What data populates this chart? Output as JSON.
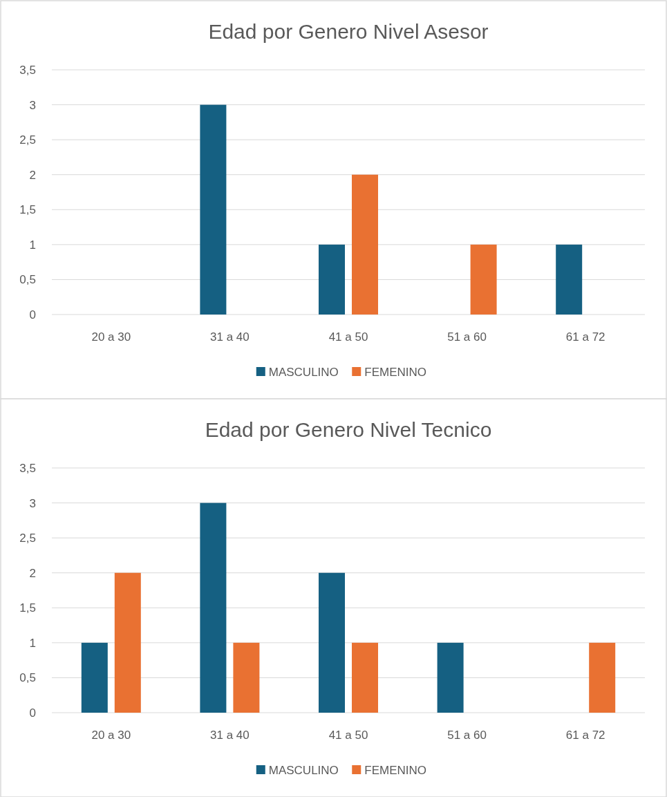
{
  "chart_data": [
    {
      "type": "bar",
      "title": "Edad por Genero Nivel Asesor",
      "categories": [
        "20 a 30",
        "31 a 40",
        "41 a 50",
        "51 a 60",
        "61 a 72"
      ],
      "series": [
        {
          "name": "MASCULINO",
          "color": "#156082",
          "values": [
            null,
            3,
            1,
            null,
            1
          ]
        },
        {
          "name": "FEMENINO",
          "color": "#e97132",
          "values": [
            null,
            null,
            2,
            1,
            null
          ]
        }
      ],
      "ylim": [
        0,
        3.5
      ],
      "yticks": [
        0,
        {
          "value": 0.5,
          "label": "0,5"
        },
        1,
        {
          "value": 1.5,
          "label": "1,5"
        },
        2,
        {
          "value": 2.5,
          "label": "2,5"
        },
        3,
        {
          "value": 3.5,
          "label": "3,5"
        }
      ],
      "grid": "y",
      "legend": "bottom"
    },
    {
      "type": "bar",
      "title": "Edad por Genero Nivel Tecnico",
      "categories": [
        "20 a 30",
        "31 a 40",
        "41 a 50",
        "51 a 60",
        "61 a 72"
      ],
      "series": [
        {
          "name": "MASCULINO",
          "color": "#156082",
          "values": [
            1,
            3,
            2,
            1,
            null
          ]
        },
        {
          "name": "FEMENINO",
          "color": "#e97132",
          "values": [
            2,
            1,
            1,
            null,
            1
          ]
        }
      ],
      "ylim": [
        0,
        3.5
      ],
      "yticks": [
        0,
        {
          "value": 0.5,
          "label": "0,5"
        },
        1,
        {
          "value": 1.5,
          "label": "1,5"
        },
        2,
        {
          "value": 2.5,
          "label": "2,5"
        },
        3,
        {
          "value": 3.5,
          "label": "3,5"
        }
      ],
      "grid": "y",
      "legend": "bottom"
    }
  ]
}
